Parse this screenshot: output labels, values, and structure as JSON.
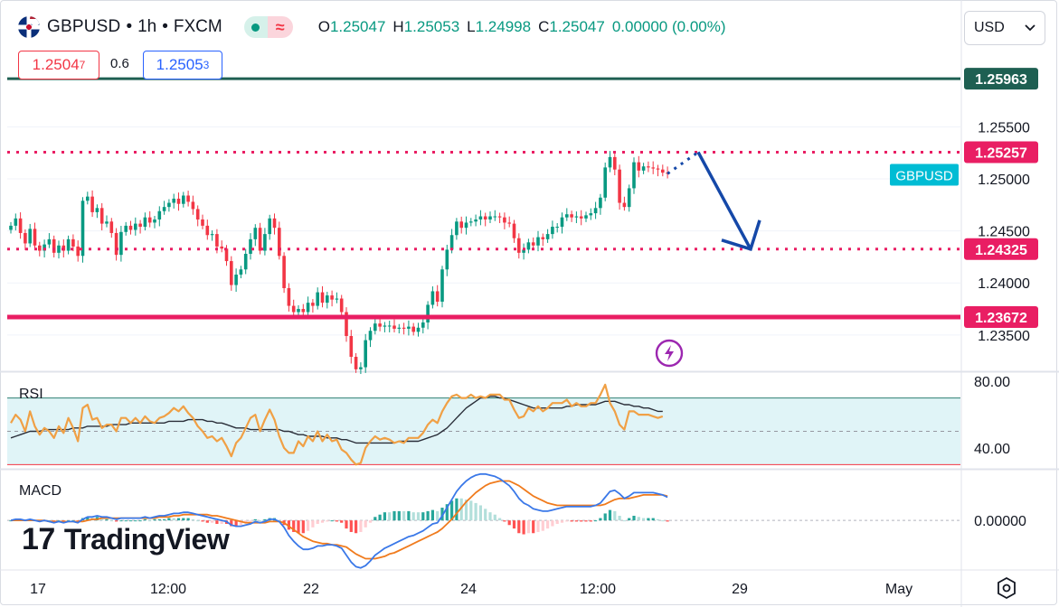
{
  "header": {
    "symbol": "GBPUSD",
    "interval": "1h",
    "exchange": "FXCM",
    "sep": "•",
    "open_k": "O",
    "open": "1.25047",
    "high_k": "H",
    "high": "1.25053",
    "low_k": "L",
    "low": "1.24998",
    "close_k": "C",
    "close": "1.25047",
    "change": "0.00000 (0.00%)"
  },
  "trade": {
    "bid_main": "1.2504",
    "bid_sup": "7",
    "spread": "0.6",
    "ask_main": "1.2505",
    "ask_sup": "3"
  },
  "currency_selector": {
    "value": "USD",
    "icon": "chevron-down-icon"
  },
  "watermark": {
    "logo": "17",
    "text": "TradingView"
  },
  "settings_icon": "gear-icon",
  "colors": {
    "up": "#089981",
    "down": "#f23645",
    "level_line": "#1e5f52",
    "support_red": "#e91e63",
    "dotted_pink": "#e91e63",
    "arrow": "#1548a8",
    "rsi": "#f0a045",
    "rsi_ma": "#2a2e39",
    "macd": "#3a78e8",
    "signal": "#f07b1d",
    "symbol_tag": "#00bcd4"
  },
  "chart_data": [
    {
      "type": "candlestick",
      "title": "GBPUSD · 1h · FXCM",
      "x_ticks": [
        "17",
        "12:00",
        "22",
        "24",
        "12:00",
        "29",
        "May"
      ],
      "y_ticks": [
        1.255,
        1.25,
        1.245,
        1.24,
        1.235
      ],
      "y_tick_labels": [
        "1.25500",
        "1.25000",
        "1.24500",
        "1.24000",
        "1.23500"
      ],
      "ylim": [
        1.2316,
        1.2665
      ],
      "price_tags": [
        {
          "label": "1.25963",
          "value": 1.25963,
          "style": "solid-line",
          "color": "#1e5f52"
        },
        {
          "label": "1.25257",
          "value": 1.25257,
          "style": "dotted-line",
          "color": "#e91e63"
        },
        {
          "label": "1.24325",
          "value": 1.24325,
          "style": "dotted-line",
          "color": "#e91e63"
        },
        {
          "label": "1.23672",
          "value": 1.23672,
          "style": "solid-line",
          "color": "#e91e63"
        }
      ],
      "symbol_tag": {
        "label": "GBPUSD",
        "value": 1.2504
      },
      "close_series": [
        1.2455,
        1.2462,
        1.2448,
        1.2438,
        1.2452,
        1.2436,
        1.2431,
        1.2437,
        1.2442,
        1.2429,
        1.2436,
        1.2431,
        1.2442,
        1.2435,
        1.2426,
        1.2479,
        1.2483,
        1.2468,
        1.2472,
        1.2457,
        1.2459,
        1.2448,
        1.2427,
        1.2449,
        1.2455,
        1.2451,
        1.2457,
        1.2454,
        1.2463,
        1.2458,
        1.2461,
        1.2469,
        1.2473,
        1.2477,
        1.2481,
        1.2476,
        1.2484,
        1.2478,
        1.2471,
        1.2461,
        1.2455,
        1.2446,
        1.2447,
        1.2435,
        1.2433,
        1.2421,
        1.2398,
        1.2408,
        1.2413,
        1.2428,
        1.2442,
        1.2453,
        1.2431,
        1.2447,
        1.2462,
        1.2453,
        1.2426,
        1.2395,
        1.2378,
        1.2372,
        1.2375,
        1.2372,
        1.2381,
        1.2378,
        1.2391,
        1.2381,
        1.2388,
        1.2384,
        1.2385,
        1.2372,
        1.2349,
        1.2329,
        1.2317,
        1.2319,
        1.2345,
        1.2354,
        1.2361,
        1.2358,
        1.2359,
        1.2359,
        1.2356,
        1.2357,
        1.2356,
        1.2358,
        1.2353,
        1.2357,
        1.2362,
        1.2379,
        1.2392,
        1.2382,
        1.2413,
        1.2432,
        1.2446,
        1.2459,
        1.2453,
        1.2458,
        1.2459,
        1.2461,
        1.2464,
        1.2461,
        1.2464,
        1.2464,
        1.2463,
        1.2458,
        1.2457,
        1.2443,
        1.2429,
        1.2432,
        1.2439,
        1.2436,
        1.2444,
        1.2442,
        1.2447,
        1.2454,
        1.2454,
        1.2463,
        1.2466,
        1.2463,
        1.2464,
        1.2462,
        1.2465,
        1.2467,
        1.2472,
        1.2482,
        1.2511,
        1.2521,
        1.2509,
        1.2477,
        1.2473,
        1.2491,
        1.2516,
        1.2508,
        1.2512,
        1.2511,
        1.251,
        1.2509,
        1.2506,
        1.2505
      ]
    },
    {
      "type": "line",
      "title": "RSI",
      "y_ticks": [
        80,
        40
      ],
      "y_tick_labels": [
        "80.00",
        "40.00"
      ],
      "ylim": [
        28,
        85
      ],
      "band": [
        70,
        30
      ],
      "midline": 50,
      "series": [
        {
          "name": "RSI",
          "values": [
            55,
            60,
            57,
            50,
            62,
            53,
            48,
            52,
            50,
            46,
            53,
            49,
            58,
            52,
            44,
            64,
            66,
            57,
            58,
            52,
            54,
            54,
            50,
            58,
            58,
            55,
            58,
            55,
            59,
            56,
            55,
            58,
            59,
            61,
            64,
            62,
            65,
            61,
            58,
            53,
            50,
            46,
            47,
            44,
            46,
            41,
            35,
            43,
            46,
            52,
            58,
            60,
            50,
            57,
            63,
            57,
            47,
            40,
            37,
            37,
            44,
            41,
            47,
            44,
            50,
            44,
            48,
            44,
            45,
            39,
            37,
            33,
            30,
            31,
            40,
            44,
            47,
            45,
            46,
            45,
            43,
            44,
            43,
            46,
            46,
            46,
            49,
            54,
            57,
            55,
            62,
            67,
            71,
            72,
            70,
            70,
            72,
            70,
            71,
            70,
            72,
            72,
            72,
            69,
            69,
            63,
            58,
            59,
            64,
            62,
            65,
            62,
            64,
            67,
            67,
            67,
            69,
            65,
            67,
            65,
            65,
            67,
            67,
            72,
            78,
            67,
            62,
            54,
            51,
            62,
            62,
            60,
            60,
            60,
            59,
            58,
            59
          ]
        },
        {
          "name": "RSI-based MA",
          "values": [
            46,
            47,
            48,
            49,
            50,
            50,
            50,
            51,
            51,
            51,
            51,
            51,
            51,
            52,
            52,
            52,
            53,
            53,
            53,
            53,
            53,
            54,
            54,
            54,
            54,
            55,
            55,
            55,
            55,
            55,
            55,
            55,
            55,
            56,
            56,
            56,
            56,
            57,
            57,
            57,
            57,
            56,
            56,
            55,
            55,
            54,
            53,
            52,
            52,
            52,
            51,
            51,
            51,
            51,
            51,
            51,
            51,
            50,
            50,
            49,
            48,
            48,
            47,
            47,
            47,
            47,
            46,
            46,
            46,
            45,
            45,
            44,
            43,
            43,
            43,
            43,
            43,
            43,
            43,
            43,
            43,
            44,
            44,
            44,
            44,
            44,
            45,
            46,
            47,
            48,
            50,
            52,
            55,
            58,
            61,
            64,
            66,
            68,
            70,
            70,
            71,
            71,
            70,
            70,
            69,
            68,
            67,
            66,
            65,
            64,
            64,
            64,
            64,
            64,
            64,
            64,
            65,
            65,
            66,
            66,
            66,
            66,
            66,
            67,
            68,
            68,
            68,
            67,
            66,
            66,
            65,
            65,
            64,
            64,
            63,
            62,
            62
          ]
        }
      ]
    },
    {
      "type": "line",
      "title": "MACD",
      "y_ticks": [
        0.0
      ],
      "y_tick_labels": [
        "0.00000"
      ],
      "ylim": [
        -0.0042,
        0.0043
      ],
      "series": [
        {
          "name": "MACD",
          "values": [
            0.0,
            0.0001,
            0.0001,
            0.0,
            0.0001,
            0.0,
            -0.0001,
            0.0,
            -0.0001,
            -0.0002,
            -0.0001,
            -0.0002,
            -0.0001,
            -0.0001,
            -0.0002,
            0.0001,
            0.0003,
            0.0003,
            0.0004,
            0.0003,
            0.0003,
            0.0002,
            0.0001,
            0.0002,
            0.0002,
            0.0002,
            0.0002,
            0.0002,
            0.0003,
            0.0002,
            0.0003,
            0.0004,
            0.0004,
            0.0005,
            0.0006,
            0.0006,
            0.0007,
            0.0007,
            0.0006,
            0.0005,
            0.0004,
            0.0003,
            0.0002,
            0.0001,
            0.0,
            -0.0001,
            -0.0004,
            -0.0005,
            -0.0005,
            -0.0004,
            -0.0003,
            -0.0001,
            -0.0002,
            -0.0001,
            0.0001,
            0.0001,
            -0.0001,
            -0.0006,
            -0.0013,
            -0.0018,
            -0.0022,
            -0.0025,
            -0.0025,
            -0.0024,
            -0.0022,
            -0.0022,
            -0.0021,
            -0.0021,
            -0.0022,
            -0.0024,
            -0.003,
            -0.0036,
            -0.004,
            -0.0041,
            -0.0039,
            -0.0035,
            -0.003,
            -0.0027,
            -0.0024,
            -0.0022,
            -0.002,
            -0.0018,
            -0.0016,
            -0.0014,
            -0.0013,
            -0.0011,
            -0.0009,
            -0.0006,
            -0.0003,
            -0.0002,
            0.0004,
            0.0011,
            0.0018,
            0.0025,
            0.003,
            0.0034,
            0.0037,
            0.0039,
            0.004,
            0.004,
            0.0039,
            0.0038,
            0.0036,
            0.0033,
            0.003,
            0.0025,
            0.0019,
            0.0015,
            0.0013,
            0.001,
            0.0009,
            0.0008,
            0.0008,
            0.0009,
            0.001,
            0.0011,
            0.0012,
            0.0012,
            0.0012,
            0.0012,
            0.0012,
            0.0012,
            0.0013,
            0.0015,
            0.002,
            0.0025,
            0.0026,
            0.0023,
            0.0019,
            0.0021,
            0.0024,
            0.0024,
            0.0024,
            0.0024,
            0.0024,
            0.0023,
            0.0022,
            0.002
          ]
        },
        {
          "name": "Signal",
          "values": [
            0.0,
            0.0,
            0.0,
            0.0,
            0.0,
            0.0,
            0.0,
            0.0,
            -0.0001,
            -0.0001,
            -0.0001,
            -0.0001,
            -0.0001,
            -0.0001,
            -0.0001,
            -0.0001,
            0.0,
            0.0001,
            0.0001,
            0.0002,
            0.0002,
            0.0002,
            0.0002,
            0.0002,
            0.0002,
            0.0002,
            0.0002,
            0.0002,
            0.0002,
            0.0002,
            0.0002,
            0.0003,
            0.0003,
            0.0003,
            0.0004,
            0.0004,
            0.0005,
            0.0005,
            0.0005,
            0.0005,
            0.0005,
            0.0005,
            0.0004,
            0.0004,
            0.0003,
            0.0002,
            0.0001,
            0.0,
            -0.0001,
            -0.0002,
            -0.0002,
            -0.0002,
            -0.0002,
            -0.0002,
            -0.0001,
            -0.0001,
            -0.0001,
            -0.0002,
            -0.0005,
            -0.0008,
            -0.0011,
            -0.0014,
            -0.0016,
            -0.0018,
            -0.0019,
            -0.002,
            -0.002,
            -0.0021,
            -0.0021,
            -0.0022,
            -0.0023,
            -0.0026,
            -0.0029,
            -0.0031,
            -0.0033,
            -0.0033,
            -0.0033,
            -0.0032,
            -0.0031,
            -0.0029,
            -0.0028,
            -0.0026,
            -0.0024,
            -0.0022,
            -0.002,
            -0.0018,
            -0.0016,
            -0.0014,
            -0.0012,
            -0.001,
            -0.0007,
            -0.0003,
            0.0001,
            0.0006,
            0.0011,
            0.0016,
            0.002,
            0.0024,
            0.0027,
            0.003,
            0.0032,
            0.0033,
            0.0034,
            0.0034,
            0.0034,
            0.0032,
            0.003,
            0.0027,
            0.0024,
            0.0021,
            0.0019,
            0.0017,
            0.0015,
            0.0014,
            0.0013,
            0.0013,
            0.0013,
            0.0013,
            0.0013,
            0.0013,
            0.0013,
            0.0013,
            0.0013,
            0.0013,
            0.0014,
            0.0016,
            0.0018,
            0.0019,
            0.0019,
            0.0019,
            0.002,
            0.0021,
            0.0022,
            0.0022,
            0.0022,
            0.0022,
            0.0022,
            0.0021
          ]
        }
      ]
    }
  ]
}
